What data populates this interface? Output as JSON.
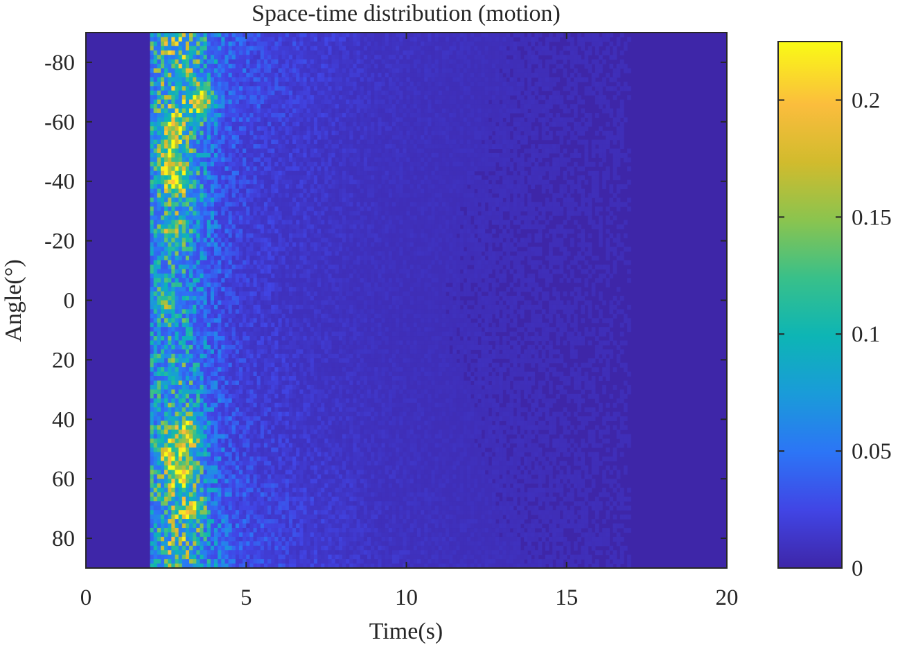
{
  "chart_data": {
    "type": "heatmap",
    "title": "Space-time distribution (motion)",
    "xlabel": "Time(s)",
    "ylabel": "Angle(°)",
    "xlim": [
      0,
      20
    ],
    "ylim": [
      -90,
      90
    ],
    "y_reversed": true,
    "x_ticks": [
      0,
      5,
      10,
      15,
      20
    ],
    "x_tick_labels": [
      "0",
      "5",
      "10",
      "15",
      "20"
    ],
    "y_ticks": [
      -80,
      -60,
      -40,
      -20,
      0,
      20,
      40,
      60,
      80
    ],
    "y_tick_labels": [
      "-80",
      "-60",
      "-40",
      "-20",
      "0",
      "20",
      "40",
      "60",
      "80"
    ],
    "colorbar": {
      "colormap": "parula",
      "range": [
        0,
        0.225
      ],
      "ticks": [
        0,
        0.05,
        0.1,
        0.15,
        0.2
      ],
      "tick_labels": [
        "0",
        "0.05",
        "0.1",
        "0.15",
        "0.2"
      ]
    },
    "description_values": {
      "background_level": 0.005,
      "onset_time_s": 2,
      "peak_time_s": 3,
      "fade_time_s": 17,
      "peak_value": 0.22,
      "hotspots": [
        {
          "time_s": 3.6,
          "angle_deg": -67,
          "value": 0.2
        },
        {
          "time_s": 2.7,
          "angle_deg": -58,
          "value": 0.18
        },
        {
          "time_s": 2.8,
          "angle_deg": -40,
          "value": 0.19
        },
        {
          "time_s": 2.6,
          "angle_deg": -47,
          "value": 0.15
        },
        {
          "time_s": 2.7,
          "angle_deg": -23,
          "value": 0.13
        },
        {
          "time_s": 2.5,
          "angle_deg": 0,
          "value": 0.12
        },
        {
          "time_s": 3.2,
          "angle_deg": 45,
          "value": 0.21
        },
        {
          "time_s": 3.0,
          "angle_deg": 58,
          "value": 0.2
        },
        {
          "time_s": 2.6,
          "angle_deg": 51,
          "value": 0.16
        },
        {
          "time_s": 3.4,
          "angle_deg": 70,
          "value": 0.14
        }
      ]
    }
  },
  "colors": {
    "axis": "#262626",
    "background": "#ffffff",
    "colormap_stops": [
      "#3e26a8",
      "#4145e5",
      "#2c75f6",
      "#1a9bd9",
      "#0db5b5",
      "#38c08a",
      "#8ac44f",
      "#d1bb2d",
      "#fbbd3d",
      "#f9fb15"
    ]
  }
}
